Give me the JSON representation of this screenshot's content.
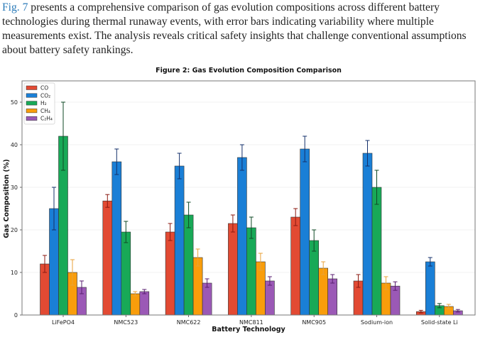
{
  "paragraph": {
    "link_text": "Fig. 7",
    "text": " presents a comprehensive comparison of gas evolution compositions across different battery technologies during thermal runaway events, with error bars indicating variability where multiple measurements exist. The analysis reveals critical safety insights that challenge conventional assumptions about battery safety rankings."
  },
  "chart_data": {
    "type": "bar",
    "title": "Figure 2: Gas Evolution Composition Comparison",
    "xlabel": "Battery Technology",
    "ylabel": "Gas Composition (%)",
    "ylim": [
      0,
      55
    ],
    "yticks": [
      "0",
      "10",
      "20",
      "30",
      "40",
      "50"
    ],
    "grid": true,
    "legend_position": "top-left",
    "categories": [
      "LiFePO4",
      "NMC523",
      "NMC622",
      "NMC811",
      "NMC905",
      "Sodium-ion",
      "Solid-state Li"
    ],
    "series": [
      {
        "name": "CO",
        "color": "#e24a33",
        "error_color": "#8b1a10",
        "values": [
          12,
          26.8,
          19.5,
          21.5,
          23,
          8,
          0.8
        ],
        "errors": [
          2,
          1.5,
          2,
          2,
          2,
          1.5,
          0.3
        ]
      },
      {
        "name": "CO₂",
        "color": "#1a7fd6",
        "error_color": "#14306b",
        "values": [
          25,
          36,
          35,
          37,
          39,
          38,
          12.5
        ],
        "errors": [
          5,
          3,
          3,
          3,
          3,
          3,
          1
        ]
      },
      {
        "name": "H₂",
        "color": "#18a957",
        "error_color": "#0f4a26",
        "values": [
          42,
          19.5,
          23.5,
          20.5,
          17.5,
          30,
          2.2
        ],
        "errors": [
          8,
          2.5,
          3,
          2.5,
          2.5,
          4,
          0.5
        ]
      },
      {
        "name": "CH₄",
        "color": "#f99d0b",
        "error_color": "#e8a23a",
        "values": [
          10,
          5,
          13.5,
          12.5,
          11,
          7.5,
          2
        ],
        "errors": [
          3,
          0.5,
          2,
          2,
          1.5,
          1.5,
          0.5
        ]
      },
      {
        "name": "C₂H₄",
        "color": "#9b59b6",
        "error_color": "#5a1f70",
        "values": [
          6.5,
          5.5,
          7.5,
          8,
          8.5,
          6.8,
          1
        ],
        "errors": [
          1.5,
          0.5,
          1,
          1,
          1,
          1,
          0.3
        ]
      }
    ]
  }
}
